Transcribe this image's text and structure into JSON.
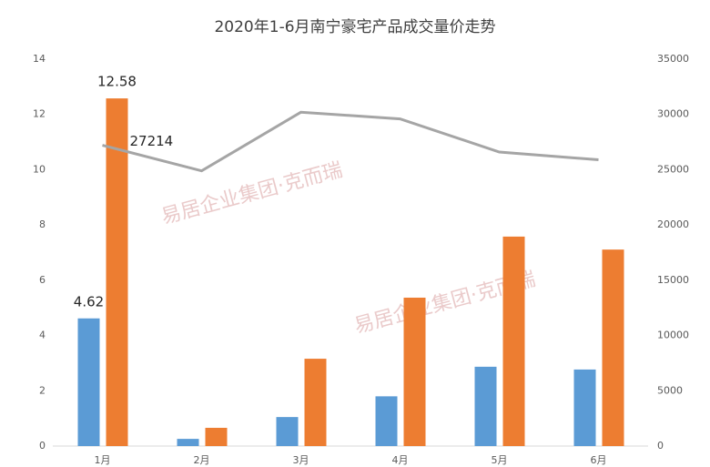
{
  "chart_data": {
    "type": "bar_line",
    "title": "2020年1-6月南宁豪宅产品成交量价走势",
    "watermark": "易居企业集团·克而瑞",
    "categories": [
      "1月",
      "2月",
      "3月",
      "4月",
      "5月",
      "6月"
    ],
    "series": [
      {
        "type": "bar",
        "color": "#5b9bd5",
        "values": [
          4.62,
          0.26,
          1.05,
          1.8,
          2.87,
          2.77
        ],
        "data_labels": [
          0
        ]
      },
      {
        "type": "bar",
        "color": "#ed7d31",
        "values": [
          12.58,
          0.66,
          3.16,
          5.37,
          7.58,
          7.11
        ],
        "data_labels": [
          0
        ]
      },
      {
        "type": "line",
        "axis": "y2",
        "color": "#a5a5a5",
        "values": [
          27214,
          24900,
          30200,
          29600,
          26600,
          25900
        ],
        "data_labels": [
          0
        ]
      }
    ],
    "ylim": [
      0,
      14
    ],
    "yticks": [
      0,
      2,
      4,
      6,
      8,
      10,
      12,
      14
    ],
    "y2lim": [
      0,
      35000
    ],
    "y2ticks": [
      0,
      5000,
      10000,
      15000,
      20000,
      25000,
      30000,
      35000
    ],
    "grid": false
  }
}
